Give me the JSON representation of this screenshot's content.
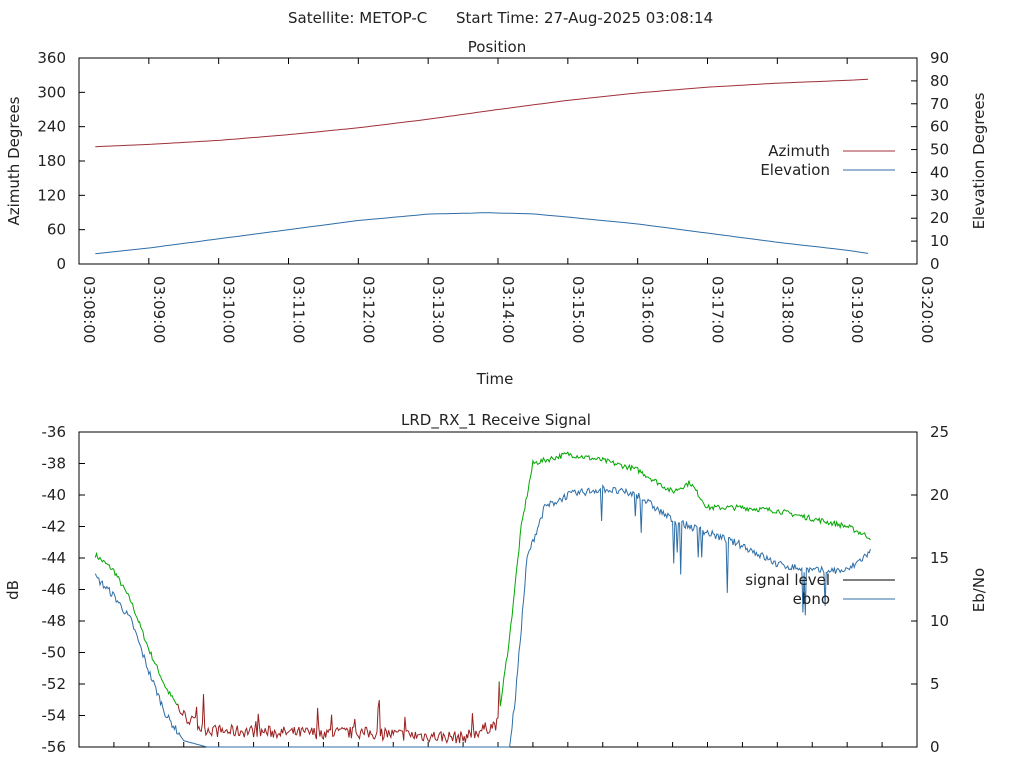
{
  "header": {
    "satellite": "Satellite: METOP-C",
    "start_time": "Start Time: 27-Aug-2025 03:08:14"
  },
  "colors": {
    "azimuth": "#a0303a",
    "elevation": "#2e6ea6",
    "signal_green": "#00a800",
    "signal_red": "#9a1f1f",
    "ebno": "#2e6ea6",
    "legend_signal": "#000000"
  },
  "chart_data": [
    {
      "id": "position",
      "type": "line",
      "title": "Position",
      "xlabel": "Time",
      "ylabel": "Azimuth Degrees",
      "y2label": "Elevation Degrees",
      "x_ticks": [
        "03:08:00",
        "03:09:00",
        "03:10:00",
        "03:11:00",
        "03:12:00",
        "03:13:00",
        "03:14:00",
        "03:15:00",
        "03:16:00",
        "03:17:00",
        "03:18:00",
        "03:19:00",
        "03:20:00"
      ],
      "xlim": [
        "03:08:00",
        "03:20:00"
      ],
      "ylim": [
        0,
        360
      ],
      "y_ticks": [
        0,
        60,
        120,
        180,
        240,
        300,
        360
      ],
      "y2lim": [
        0,
        90
      ],
      "y2_ticks": [
        0,
        10,
        20,
        30,
        40,
        50,
        60,
        70,
        80,
        90
      ],
      "legend_position": "right",
      "series": [
        {
          "name": "Azimuth",
          "axis": "y1",
          "x": [
            "03:08:14",
            "03:09:00",
            "03:10:00",
            "03:11:00",
            "03:12:00",
            "03:13:00",
            "03:14:00",
            "03:15:00",
            "03:16:00",
            "03:17:00",
            "03:18:00",
            "03:19:00",
            "03:19:20"
          ],
          "values": [
            205,
            209,
            216,
            226,
            238,
            253,
            270,
            286,
            299,
            309,
            316,
            321,
            323
          ]
        },
        {
          "name": "Elevation",
          "axis": "y2",
          "x": [
            "03:08:14",
            "03:09:00",
            "03:10:00",
            "03:11:00",
            "03:12:00",
            "03:13:00",
            "03:13:50",
            "03:14:30",
            "03:15:00",
            "03:16:00",
            "03:17:00",
            "03:18:00",
            "03:19:00",
            "03:19:20"
          ],
          "values": [
            4.5,
            7,
            11,
            15,
            19,
            21.8,
            22.4,
            21.9,
            20.5,
            17.5,
            13.5,
            9.5,
            6,
            4.5
          ]
        }
      ]
    },
    {
      "id": "receive_signal",
      "type": "line",
      "title": "LRD_RX_1 Receive Signal",
      "ylabel": "dB",
      "y2label": "Eb/No",
      "ylim": [
        -56,
        -36
      ],
      "y_ticks": [
        -56,
        -54,
        -52,
        -50,
        -48,
        -46,
        -44,
        -42,
        -40,
        -38,
        -36
      ],
      "y2lim": [
        0,
        25
      ],
      "y2_ticks": [
        0,
        5,
        10,
        15,
        20,
        25
      ],
      "xlim": [
        "03:08:00",
        "03:20:00"
      ],
      "legend_position": "right",
      "legend": [
        "signal level",
        "ebno"
      ],
      "series": [
        {
          "name": "signal level",
          "axis": "y1",
          "x": [
            "03:08:14",
            "03:08:30",
            "03:08:45",
            "03:09:00",
            "03:09:15",
            "03:09:30",
            "03:09:45",
            "03:10:00",
            "03:10:30",
            "03:11:00",
            "03:12:00",
            "03:13:00",
            "03:13:30",
            "03:14:00",
            "03:14:10",
            "03:14:20",
            "03:14:30",
            "03:15:00",
            "03:15:30",
            "03:16:00",
            "03:16:30",
            "03:16:45",
            "03:17:00",
            "03:17:30",
            "03:18:00",
            "03:18:30",
            "03:19:00",
            "03:19:20"
          ],
          "values": [
            -43.8,
            -44.8,
            -46.8,
            -49.8,
            -52.3,
            -54.0,
            -54.8,
            -55.0,
            -55.0,
            -55.1,
            -55.1,
            -55.3,
            -55.4,
            -54.5,
            -49.0,
            -42.0,
            -38.0,
            -37.4,
            -37.8,
            -38.4,
            -39.8,
            -39.2,
            -40.8,
            -40.8,
            -41.0,
            -41.5,
            -42.0,
            -42.7
          ]
        },
        {
          "name": "ebno",
          "axis": "y2",
          "x": [
            "03:08:14",
            "03:08:30",
            "03:08:45",
            "03:09:00",
            "03:09:15",
            "03:09:30",
            "03:09:50",
            "03:14:10",
            "03:14:15",
            "03:14:25",
            "03:14:40",
            "03:15:00",
            "03:15:30",
            "03:16:00",
            "03:16:30",
            "03:17:00",
            "03:17:30",
            "03:18:00",
            "03:18:30",
            "03:19:00",
            "03:19:20"
          ],
          "values": [
            13.5,
            12.0,
            10.0,
            6.0,
            2.5,
            0.5,
            0.0,
            0.0,
            4.0,
            15.0,
            19.0,
            20.0,
            20.5,
            20.0,
            18.0,
            17.0,
            16.0,
            14.5,
            14.0,
            14.0,
            15.5
          ]
        }
      ]
    }
  ]
}
